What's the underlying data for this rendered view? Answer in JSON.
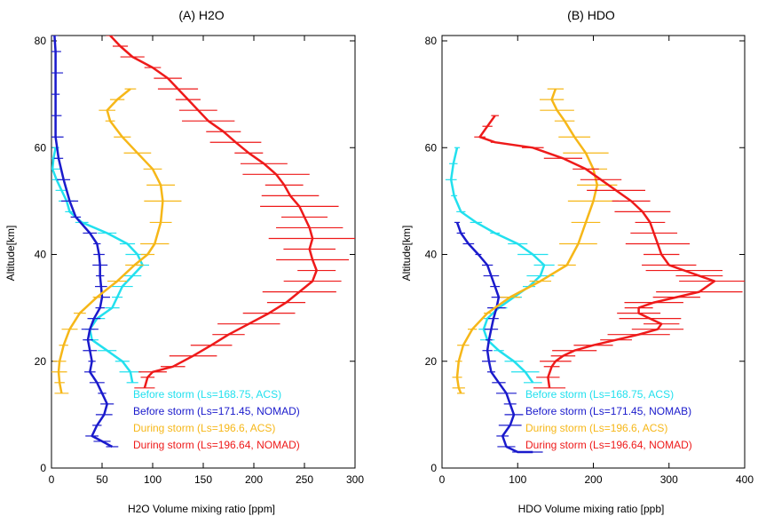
{
  "chart_data": [
    {
      "type": "line",
      "title": "(A) H2O",
      "xlabel": "H2O Volume mixing ratio [ppm]",
      "ylabel": "Altitude[km]",
      "xlim": [
        0,
        300
      ],
      "ylim": [
        0,
        81
      ],
      "xticks": [
        "0",
        "50",
        "100",
        "150",
        "200",
        "250",
        "300"
      ],
      "yticks": [
        "0",
        "20",
        "40",
        "60",
        "80"
      ],
      "grid": false,
      "legend_position": "bottom-right",
      "series": [
        {
          "name": "Before storm (Ls=168.75, ACS)",
          "color": "#22e0ee",
          "error_bars": true,
          "points": [
            [
              4,
              60
            ],
            [
              2,
              58
            ],
            [
              1,
              56
            ],
            [
              5,
              54
            ],
            [
              10,
              52
            ],
            [
              15,
              50
            ],
            [
              18,
              48
            ],
            [
              30,
              46
            ],
            [
              55,
              44
            ],
            [
              75,
              42
            ],
            [
              85,
              40
            ],
            [
              90,
              38
            ],
            [
              80,
              36
            ],
            [
              70,
              34
            ],
            [
              65,
              32
            ],
            [
              60,
              30
            ],
            [
              45,
              28
            ],
            [
              38,
              26
            ],
            [
              40,
              24
            ],
            [
              55,
              22
            ],
            [
              70,
              20
            ],
            [
              78,
              18
            ],
            [
              80,
              16
            ]
          ]
        },
        {
          "name": "Before storm (Ls=171.45, NOMAD)",
          "color": "#1a1acc",
          "error_bars": true,
          "points": [
            [
              3,
              81
            ],
            [
              4,
              78
            ],
            [
              4,
              74
            ],
            [
              4,
              70
            ],
            [
              4,
              66
            ],
            [
              4,
              62
            ],
            [
              7,
              58
            ],
            [
              12,
              54
            ],
            [
              18,
              50
            ],
            [
              24,
              47
            ],
            [
              38,
              44
            ],
            [
              45,
              42
            ],
            [
              47,
              40
            ],
            [
              48,
              38
            ],
            [
              48,
              36
            ],
            [
              49,
              34
            ],
            [
              50,
              32
            ],
            [
              48,
              30
            ],
            [
              42,
              28
            ],
            [
              38,
              26
            ],
            [
              36,
              24
            ],
            [
              38,
              22
            ],
            [
              40,
              20
            ],
            [
              38,
              18
            ],
            [
              45,
              16
            ],
            [
              50,
              14
            ],
            [
              55,
              12
            ],
            [
              52,
              10
            ],
            [
              45,
              8
            ],
            [
              40,
              6
            ],
            [
              50,
              5
            ],
            [
              60,
              4
            ]
          ]
        },
        {
          "name": "During storm (Ls=196.6, ACS)",
          "color": "#f6b718",
          "error_bars": true,
          "points": [
            [
              78,
              71
            ],
            [
              65,
              69
            ],
            [
              55,
              67
            ],
            [
              58,
              65
            ],
            [
              70,
              62
            ],
            [
              85,
              59
            ],
            [
              100,
              56
            ],
            [
              108,
              53
            ],
            [
              110,
              50
            ],
            [
              108,
              46
            ],
            [
              102,
              42
            ],
            [
              95,
              40
            ],
            [
              82,
              38
            ],
            [
              65,
              35
            ],
            [
              45,
              32
            ],
            [
              28,
              29
            ],
            [
              18,
              26
            ],
            [
              12,
              23
            ],
            [
              8,
              20
            ],
            [
              7,
              18
            ],
            [
              8,
              16
            ],
            [
              10,
              14
            ]
          ]
        },
        {
          "name": "During storm (Ls=196.64, NOMAD)",
          "color": "#ee1a1a",
          "error_bars": true,
          "points": [
            [
              58,
              81
            ],
            [
              68,
              79
            ],
            [
              80,
              77
            ],
            [
              100,
              75
            ],
            [
              115,
              73
            ],
            [
              125,
              71
            ],
            [
              135,
              69
            ],
            [
              145,
              67
            ],
            [
              155,
              65
            ],
            [
              170,
              63
            ],
            [
              182,
              61
            ],
            [
              195,
              59
            ],
            [
              210,
              57
            ],
            [
              222,
              55
            ],
            [
              230,
              53
            ],
            [
              236,
              51
            ],
            [
              245,
              49
            ],
            [
              250,
              47
            ],
            [
              255,
              45
            ],
            [
              258,
              43
            ],
            [
              255,
              41
            ],
            [
              258,
              39
            ],
            [
              262,
              37
            ],
            [
              258,
              35
            ],
            [
              245,
              33
            ],
            [
              232,
              31
            ],
            [
              215,
              29
            ],
            [
              195,
              27
            ],
            [
              175,
              25
            ],
            [
              158,
              23
            ],
            [
              140,
              21
            ],
            [
              120,
              19
            ],
            [
              100,
              18
            ],
            [
              95,
              17
            ],
            [
              92,
              15
            ]
          ]
        }
      ]
    },
    {
      "type": "line",
      "title": "(B) HDO",
      "xlabel": "HDO Volume mixing ratio [ppb]",
      "ylabel": "Altitude[km]",
      "xlim": [
        0,
        400
      ],
      "ylim": [
        0,
        81
      ],
      "xticks": [
        "0",
        "100",
        "200",
        "300",
        "400"
      ],
      "yticks": [
        "0",
        "20",
        "40",
        "60",
        "80"
      ],
      "grid": false,
      "legend_position": "bottom-right",
      "series": [
        {
          "name": "Before storm (Ls=168.75, ACS)",
          "color": "#22e0ee",
          "error_bars": true,
          "points": [
            [
              20,
              60
            ],
            [
              15,
              57
            ],
            [
              12,
              54
            ],
            [
              16,
              51
            ],
            [
              25,
              48
            ],
            [
              45,
              46
            ],
            [
              70,
              44
            ],
            [
              100,
              42
            ],
            [
              120,
              40
            ],
            [
              135,
              38
            ],
            [
              130,
              36
            ],
            [
              115,
              34
            ],
            [
              95,
              32
            ],
            [
              75,
              30
            ],
            [
              60,
              28
            ],
            [
              55,
              26
            ],
            [
              60,
              24
            ],
            [
              75,
              22
            ],
            [
              95,
              20
            ],
            [
              110,
              18
            ],
            [
              120,
              16
            ]
          ]
        },
        {
          "name": "Before storm (Ls=171.45, NOMAB)",
          "color": "#1a1acc",
          "error_bars": true,
          "points": [
            [
              20,
              46
            ],
            [
              25,
              44
            ],
            [
              35,
              42
            ],
            [
              48,
              40
            ],
            [
              60,
              38
            ],
            [
              65,
              36
            ],
            [
              70,
              34
            ],
            [
              75,
              32
            ],
            [
              72,
              30
            ],
            [
              68,
              28
            ],
            [
              65,
              26
            ],
            [
              62,
              24
            ],
            [
              60,
              22
            ],
            [
              62,
              20
            ],
            [
              65,
              18
            ],
            [
              75,
              16
            ],
            [
              85,
              14
            ],
            [
              90,
              12
            ],
            [
              95,
              10
            ],
            [
              90,
              8
            ],
            [
              80,
              6
            ],
            [
              85,
              4
            ],
            [
              100,
              3
            ],
            [
              120,
              3
            ]
          ]
        },
        {
          "name": "During storm (Ls=196.6, ACS)",
          "color": "#f6b718",
          "error_bars": true,
          "points": [
            [
              150,
              71
            ],
            [
              145,
              69
            ],
            [
              152,
              67
            ],
            [
              162,
              65
            ],
            [
              175,
              62
            ],
            [
              190,
              59
            ],
            [
              200,
              56
            ],
            [
              205,
              53
            ],
            [
              200,
              50
            ],
            [
              190,
              46
            ],
            [
              180,
              42
            ],
            [
              165,
              38
            ],
            [
              130,
              35
            ],
            [
              90,
              32
            ],
            [
              60,
              29
            ],
            [
              40,
              26
            ],
            [
              28,
              23
            ],
            [
              22,
              20
            ],
            [
              20,
              17
            ],
            [
              22,
              15
            ],
            [
              25,
              14
            ]
          ]
        },
        {
          "name": "During storm (Ls=196.64, NOMAD)",
          "color": "#ee1a1a",
          "error_bars": true,
          "points": [
            [
              70,
              66
            ],
            [
              60,
              64
            ],
            [
              50,
              62
            ],
            [
              70,
              61
            ],
            [
              120,
              60
            ],
            [
              160,
              58
            ],
            [
              190,
              56
            ],
            [
              210,
              54
            ],
            [
              230,
              52
            ],
            [
              250,
              50
            ],
            [
              265,
              48
            ],
            [
              275,
              46
            ],
            [
              280,
              44
            ],
            [
              285,
              42
            ],
            [
              290,
              40
            ],
            [
              300,
              38
            ],
            [
              320,
              37
            ],
            [
              340,
              36
            ],
            [
              360,
              35
            ],
            [
              340,
              33
            ],
            [
              310,
              32
            ],
            [
              280,
              31
            ],
            [
              260,
              30
            ],
            [
              260,
              29
            ],
            [
              275,
              28
            ],
            [
              290,
              27
            ],
            [
              285,
              26
            ],
            [
              260,
              25
            ],
            [
              230,
              24
            ],
            [
              200,
              23
            ],
            [
              175,
              22
            ],
            [
              160,
              21
            ],
            [
              150,
              20
            ],
            [
              145,
              19
            ],
            [
              140,
              17
            ],
            [
              142,
              15
            ]
          ]
        }
      ]
    }
  ]
}
